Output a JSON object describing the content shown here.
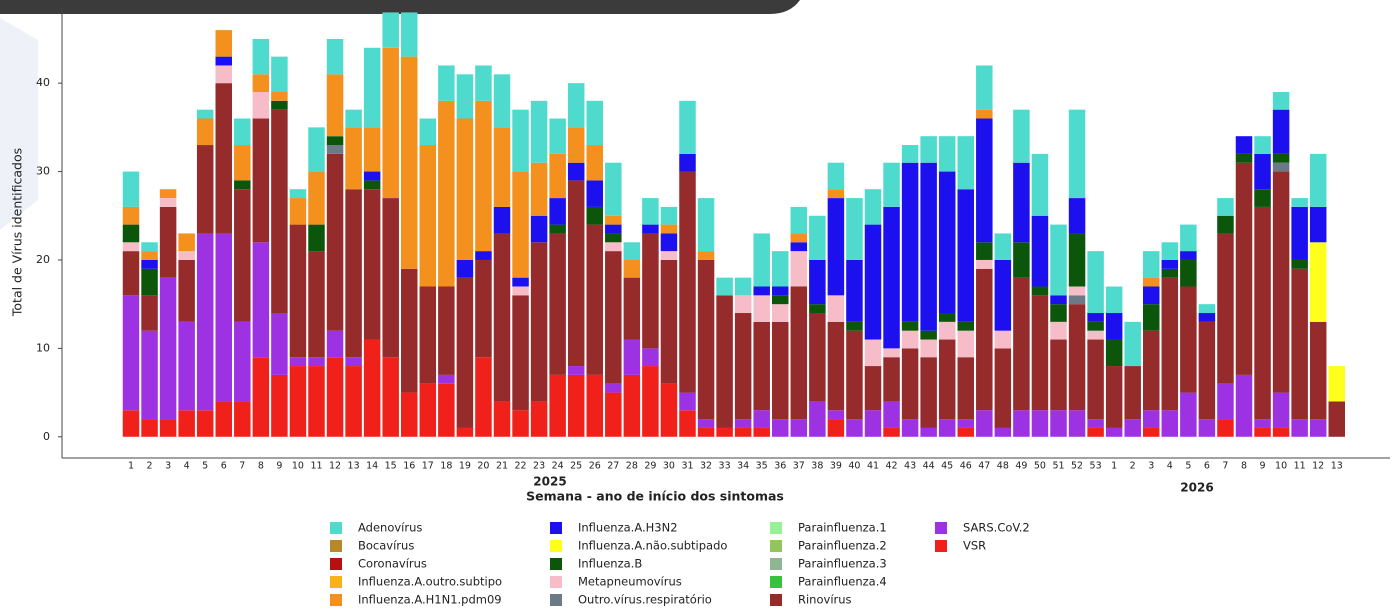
{
  "chart_data": {
    "type": "bar",
    "stacked": true,
    "y_axis_label": "Total de Vírus identificados",
    "x_axis_label": "Semana - ano de início dos sintomas",
    "x_group_labels": [
      "2025",
      "2026"
    ],
    "categories": [
      "1",
      "2",
      "3",
      "4",
      "5",
      "6",
      "7",
      "8",
      "9",
      "10",
      "11",
      "12",
      "13",
      "14",
      "15",
      "16",
      "17",
      "18",
      "19",
      "20",
      "21",
      "22",
      "23",
      "24",
      "25",
      "26",
      "27",
      "28",
      "29",
      "30",
      "31",
      "32",
      "33",
      "34",
      "35",
      "36",
      "37",
      "38",
      "39",
      "40",
      "41",
      "42",
      "43",
      "44",
      "45",
      "46",
      "47",
      "48",
      "49",
      "50",
      "51",
      "52",
      "53",
      "1",
      "2",
      "3",
      "4",
      "5",
      "6",
      "7",
      "8",
      "9",
      "10",
      "11",
      "12",
      "13"
    ],
    "ylim": [
      -2.4,
      48.5
    ],
    "yticks": [
      0,
      10,
      20,
      30,
      40
    ],
    "series": [
      {
        "name": "Adenovírus",
        "color": "#4fdace",
        "values": [
          4,
          1,
          0,
          0,
          1,
          0,
          3,
          4,
          4,
          1,
          5,
          4,
          2,
          9,
          4,
          5,
          3,
          4,
          5,
          4,
          6,
          7,
          7,
          4,
          5,
          5,
          6,
          2,
          3,
          2,
          6,
          6,
          2,
          2,
          6,
          4,
          3,
          5,
          3,
          7,
          4,
          5,
          2,
          3,
          4,
          6,
          5,
          3,
          6,
          7,
          8,
          10,
          7,
          3,
          5,
          3,
          2,
          3,
          1,
          2,
          0,
          2,
          2,
          1,
          6,
          0
        ]
      },
      {
        "name": "Bocavírus",
        "color": "#b5892a",
        "values": [
          0,
          0,
          0,
          0,
          0,
          0,
          0,
          0,
          0,
          0,
          0,
          0,
          0,
          0,
          0,
          0,
          0,
          0,
          0,
          0,
          0,
          0,
          0,
          0,
          0,
          0,
          0,
          0,
          0,
          0,
          0,
          0,
          0,
          0,
          0,
          0,
          0,
          0,
          0,
          0,
          0,
          0,
          0,
          0,
          0,
          0,
          0,
          0,
          0,
          0,
          0,
          0,
          0,
          0,
          0,
          0,
          0,
          0,
          0,
          0,
          0,
          0,
          0,
          0,
          0,
          0
        ]
      },
      {
        "name": "Coronavírus",
        "color": "#b8100f",
        "values": [
          0,
          0,
          0,
          0,
          0,
          0,
          0,
          0,
          0,
          0,
          0,
          0,
          0,
          0,
          0,
          0,
          0,
          0,
          0,
          0,
          0,
          0,
          0,
          0,
          0,
          0,
          0,
          0,
          0,
          0,
          0,
          0,
          0,
          0,
          0,
          0,
          0,
          0,
          0,
          0,
          0,
          0,
          0,
          0,
          0,
          0,
          0,
          0,
          0,
          0,
          0,
          0,
          0,
          0,
          0,
          0,
          0,
          0,
          0,
          0,
          0,
          0,
          0,
          0,
          0,
          0
        ]
      },
      {
        "name": "Influenza.A.outro.subtipo",
        "color": "#f7b21a",
        "values": [
          0,
          0,
          0,
          0,
          0,
          0,
          0,
          0,
          0,
          0,
          0,
          0,
          0,
          0,
          0,
          0,
          0,
          0,
          0,
          0,
          0,
          0,
          0,
          0,
          0,
          0,
          0,
          0,
          0,
          0,
          0,
          0,
          0,
          0,
          0,
          0,
          0,
          0,
          0,
          0,
          0,
          0,
          0,
          0,
          0,
          0,
          0,
          0,
          0,
          0,
          0,
          0,
          0,
          0,
          0,
          0,
          0,
          0,
          0,
          0,
          0,
          0,
          0,
          0,
          0,
          0
        ]
      },
      {
        "name": "Influenza.A.H1N1.pdm09",
        "color": "#f3901e",
        "values": [
          2,
          1,
          1,
          2,
          3,
          3,
          4,
          2,
          1,
          3,
          6,
          7,
          7,
          5,
          17,
          24,
          16,
          21,
          16,
          17,
          9,
          12,
          6,
          5,
          4,
          4,
          1,
          2,
          0,
          1,
          0,
          1,
          0,
          0,
          0,
          0,
          1,
          0,
          1,
          0,
          0,
          0,
          0,
          0,
          0,
          0,
          1,
          0,
          0,
          0,
          0,
          0,
          0,
          0,
          0,
          1,
          0,
          0,
          0,
          0,
          0,
          0,
          0,
          0,
          0,
          0
        ]
      },
      {
        "name": "Influenza.A.H3N2",
        "color": "#1c10ee",
        "values": [
          0,
          1,
          0,
          0,
          0,
          1,
          0,
          0,
          0,
          0,
          0,
          0,
          0,
          1,
          0,
          0,
          0,
          0,
          2,
          1,
          3,
          1,
          3,
          3,
          2,
          3,
          1,
          0,
          1,
          2,
          2,
          0,
          0,
          0,
          1,
          1,
          1,
          5,
          11,
          7,
          13,
          16,
          18,
          19,
          16,
          15,
          14,
          8,
          9,
          8,
          1,
          4,
          1,
          3,
          0,
          2,
          1,
          1,
          1,
          0,
          2,
          4,
          5,
          6,
          4,
          0
        ]
      },
      {
        "name": "Influenza.A.não.subtipado",
        "color": "#ffff1c",
        "values": [
          0,
          0,
          0,
          0,
          0,
          0,
          0,
          0,
          0,
          0,
          0,
          0,
          0,
          0,
          0,
          0,
          0,
          0,
          0,
          0,
          0,
          0,
          0,
          0,
          0,
          0,
          0,
          0,
          0,
          0,
          0,
          0,
          0,
          0,
          0,
          0,
          0,
          0,
          0,
          0,
          0,
          0,
          0,
          0,
          0,
          0,
          0,
          0,
          0,
          0,
          0,
          0,
          0,
          0,
          0,
          0,
          0,
          0,
          0,
          0,
          0,
          0,
          0,
          0,
          9,
          4
        ]
      },
      {
        "name": "Influenza.B",
        "color": "#0c560c",
        "values": [
          2,
          3,
          0,
          0,
          0,
          0,
          1,
          0,
          1,
          0,
          3,
          1,
          0,
          1,
          0,
          0,
          0,
          0,
          0,
          0,
          0,
          0,
          0,
          1,
          0,
          2,
          1,
          0,
          0,
          0,
          0,
          0,
          0,
          0,
          0,
          1,
          0,
          1,
          0,
          1,
          0,
          0,
          1,
          1,
          1,
          1,
          2,
          0,
          4,
          1,
          2,
          6,
          1,
          3,
          0,
          3,
          1,
          3,
          0,
          2,
          1,
          2,
          1,
          1,
          0,
          0
        ]
      },
      {
        "name": "Metapneumovírus",
        "color": "#f6bdc9",
        "values": [
          1,
          0,
          1,
          1,
          0,
          2,
          0,
          3,
          0,
          0,
          0,
          0,
          0,
          0,
          0,
          0,
          0,
          0,
          0,
          0,
          0,
          1,
          0,
          0,
          0,
          0,
          1,
          0,
          0,
          1,
          0,
          0,
          0,
          2,
          3,
          2,
          4,
          0,
          3,
          0,
          3,
          1,
          2,
          2,
          2,
          3,
          1,
          2,
          0,
          0,
          2,
          1,
          1,
          0,
          0,
          0,
          0,
          0,
          0,
          0,
          0,
          0,
          0,
          0,
          0,
          0
        ]
      },
      {
        "name": "Outro.vírus.respiratório",
        "color": "#6c7a88",
        "values": [
          0,
          0,
          0,
          0,
          0,
          0,
          0,
          0,
          0,
          0,
          0,
          1,
          0,
          0,
          0,
          0,
          0,
          0,
          0,
          0,
          0,
          0,
          0,
          0,
          0,
          0,
          0,
          0,
          0,
          0,
          0,
          0,
          0,
          0,
          0,
          0,
          0,
          0,
          0,
          0,
          0,
          0,
          0,
          0,
          0,
          0,
          0,
          0,
          0,
          0,
          0,
          1,
          0,
          0,
          0,
          0,
          0,
          0,
          0,
          0,
          0,
          0,
          1,
          0,
          0,
          0
        ]
      },
      {
        "name": "Parainfluenza.1",
        "color": "#98f098",
        "values": [
          0,
          0,
          0,
          0,
          0,
          0,
          0,
          0,
          0,
          0,
          0,
          0,
          0,
          0,
          0,
          0,
          0,
          0,
          0,
          0,
          0,
          0,
          0,
          0,
          0,
          0,
          0,
          0,
          0,
          0,
          0,
          0,
          0,
          0,
          0,
          0,
          0,
          0,
          0,
          0,
          0,
          0,
          0,
          0,
          0,
          0,
          0,
          0,
          0,
          0,
          0,
          0,
          0,
          0,
          0,
          0,
          0,
          0,
          0,
          0,
          0,
          0,
          0,
          0,
          0,
          0
        ]
      },
      {
        "name": "Parainfluenza.2",
        "color": "#93c45e",
        "values": [
          0,
          0,
          0,
          0,
          0,
          0,
          0,
          0,
          0,
          0,
          0,
          0,
          0,
          0,
          0,
          0,
          0,
          0,
          0,
          0,
          0,
          0,
          0,
          0,
          0,
          0,
          0,
          0,
          0,
          0,
          0,
          0,
          0,
          0,
          0,
          0,
          0,
          0,
          0,
          0,
          0,
          0,
          0,
          0,
          0,
          0,
          0,
          0,
          0,
          0,
          0,
          0,
          0,
          0,
          0,
          0,
          0,
          0,
          0,
          0,
          0,
          0,
          0,
          0,
          0,
          0
        ]
      },
      {
        "name": "Parainfluenza.3",
        "color": "#8fb592",
        "values": [
          0,
          0,
          0,
          0,
          0,
          0,
          0,
          0,
          0,
          0,
          0,
          0,
          0,
          0,
          0,
          0,
          0,
          0,
          0,
          0,
          0,
          0,
          0,
          0,
          0,
          0,
          0,
          0,
          0,
          0,
          0,
          0,
          0,
          0,
          0,
          0,
          0,
          0,
          0,
          0,
          0,
          0,
          0,
          0,
          0,
          0,
          0,
          0,
          0,
          0,
          0,
          0,
          0,
          0,
          0,
          0,
          0,
          0,
          0,
          0,
          0,
          0,
          0,
          0,
          0,
          0
        ]
      },
      {
        "name": "Parainfluenza.4",
        "color": "#36c23a",
        "values": [
          0,
          0,
          0,
          0,
          0,
          0,
          0,
          0,
          0,
          0,
          0,
          0,
          0,
          0,
          0,
          0,
          0,
          0,
          0,
          0,
          0,
          0,
          0,
          0,
          0,
          0,
          0,
          0,
          0,
          0,
          0,
          0,
          0,
          0,
          0,
          0,
          0,
          0,
          0,
          0,
          0,
          0,
          0,
          0,
          0,
          0,
          0,
          0,
          0,
          0,
          0,
          0,
          0,
          0,
          0,
          0,
          0,
          0,
          0,
          0,
          0,
          0,
          0,
          0,
          0,
          0
        ]
      },
      {
        "name": "Rinovírus",
        "color": "#962b2b",
        "values": [
          5,
          4,
          8,
          7,
          10,
          17,
          15,
          14,
          23,
          15,
          12,
          20,
          19,
          17,
          18,
          14,
          11,
          10,
          17,
          11,
          19,
          13,
          18,
          16,
          21,
          17,
          15,
          7,
          13,
          14,
          25,
          18,
          15,
          12,
          10,
          11,
          15,
          10,
          10,
          10,
          5,
          5,
          8,
          8,
          9,
          7,
          16,
          9,
          15,
          13,
          8,
          12,
          9,
          7,
          6,
          9,
          15,
          12,
          11,
          17,
          24,
          24,
          25,
          17,
          11,
          4
        ]
      },
      {
        "name": "SARS.CoV.2",
        "color": "#9c32e2",
        "values": [
          13,
          10,
          16,
          10,
          20,
          19,
          9,
          13,
          7,
          1,
          1,
          3,
          1,
          0,
          0,
          0,
          0,
          1,
          0,
          0,
          0,
          0,
          0,
          0,
          1,
          0,
          1,
          4,
          2,
          0,
          2,
          1,
          0,
          1,
          2,
          2,
          2,
          4,
          1,
          2,
          3,
          3,
          2,
          1,
          2,
          1,
          3,
          1,
          3,
          3,
          3,
          3,
          1,
          1,
          2,
          2,
          3,
          5,
          2,
          4,
          7,
          1,
          4,
          2,
          2,
          0
        ]
      },
      {
        "name": "VSR",
        "color": "#f0211b",
        "values": [
          3,
          2,
          2,
          3,
          3,
          4,
          4,
          9,
          7,
          8,
          8,
          9,
          8,
          11,
          9,
          5,
          6,
          6,
          1,
          9,
          4,
          3,
          4,
          7,
          7,
          7,
          5,
          7,
          8,
          6,
          3,
          1,
          1,
          1,
          1,
          0,
          0,
          0,
          2,
          0,
          0,
          1,
          0,
          0,
          0,
          1,
          0,
          0,
          0,
          0,
          0,
          0,
          1,
          0,
          0,
          1,
          0,
          0,
          0,
          2,
          0,
          1,
          1,
          0,
          0,
          0
        ]
      }
    ]
  }
}
